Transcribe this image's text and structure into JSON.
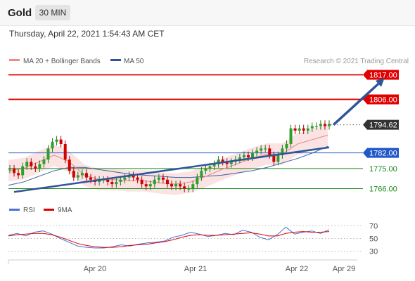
{
  "header": {
    "asset": "Gold",
    "timeframe": "30 MIN",
    "datetime": "Thursday, April 22, 2021 1:54:43 AM CET"
  },
  "legend": [
    {
      "label": "MA 20 + Bollinger Bands",
      "color": "#f08a8a"
    },
    {
      "label": "MA 50",
      "color": "#2e5597"
    }
  ],
  "copyright": "Research © 2021 Trading Central",
  "levels": [
    {
      "value": 1817.0,
      "label": "1817.00",
      "role": "resistance",
      "color": "#e00000"
    },
    {
      "value": 1806.0,
      "label": "1806.00",
      "role": "resistance",
      "color": "#e00000"
    },
    {
      "value": 1794.62,
      "label": "1794.62",
      "role": "last price",
      "color": "#333333"
    },
    {
      "value": 1782.0,
      "label": "1782.00",
      "role": "pivot",
      "color": "#2258c8"
    },
    {
      "value": 1775.0,
      "label": "1775.00",
      "role": "support",
      "color": "#1a8a1a"
    },
    {
      "value": 1766.0,
      "label": "1766.00",
      "role": "support",
      "color": "#1a8a1a"
    }
  ],
  "rsi": {
    "legend": [
      {
        "label": "RSI",
        "color": "#4a72d0"
      },
      {
        "label": "9MA",
        "color": "#dd0000"
      }
    ],
    "ticks": [
      "70",
      "50",
      "30"
    ]
  },
  "chart_data": {
    "type": "candlestick",
    "x_tick_labels": [
      "Apr 20",
      "Apr 21",
      "Apr 22",
      "Apr 29"
    ],
    "y_range": [
      1760,
      1822
    ],
    "candles_approx": [
      1775,
      1773,
      1772,
      1776,
      1778,
      1776,
      1775,
      1777,
      1779,
      1784,
      1787,
      1788,
      1786,
      1779,
      1774,
      1771,
      1772,
      1773,
      1771,
      1770,
      1769,
      1770,
      1770,
      1769,
      1768,
      1769,
      1770,
      1771,
      1772,
      1771,
      1770,
      1768,
      1767,
      1768,
      1770,
      1771,
      1770,
      1768,
      1767,
      1768,
      1767,
      1766,
      1766,
      1768,
      1771,
      1774,
      1775,
      1776,
      1777,
      1779,
      1778,
      1777,
      1778,
      1779,
      1780,
      1781,
      1780,
      1782,
      1783,
      1784,
      1784,
      1781,
      1778,
      1781,
      1784,
      1786,
      1793,
      1792,
      1793,
      1792,
      1793,
      1794,
      1794,
      1795,
      1794,
      1795
    ],
    "ma50_approx": [
      1767.5,
      1769,
      1771.5,
      1774,
      1775.5,
      1775.5,
      1774.5,
      1773.5,
      1772.5,
      1772,
      1771.5,
      1771,
      1771,
      1771.5,
      1772,
      1773,
      1774,
      1775.5,
      1777.5,
      1779.5,
      1782,
      1785
    ],
    "ma20_approx": [
      1774,
      1775,
      1778,
      1781,
      1778,
      1772,
      1770,
      1770,
      1769.5,
      1769.5,
      1768.5,
      1768,
      1769,
      1771.5,
      1774.5,
      1777,
      1779.5,
      1781.5,
      1781.5,
      1786,
      1788,
      1790
    ],
    "trendline": {
      "from": [
        1,
        1764.5
      ],
      "to": [
        75,
        1784.5
      ]
    },
    "projected_arrow": {
      "from": [
        76,
        1794.6
      ],
      "to": [
        88,
        1815.5
      ]
    },
    "rsi_approx": [
      55,
      58,
      54,
      60,
      62,
      57,
      50,
      44,
      38,
      36,
      35,
      35,
      37,
      40,
      38,
      41,
      43,
      44,
      46,
      52,
      55,
      60,
      57,
      53,
      55,
      58,
      56,
      63,
      60,
      52,
      48,
      56,
      68,
      57,
      60,
      62,
      58,
      64
    ],
    "rsi_ma_approx": [
      54,
      56,
      57,
      58,
      58,
      56,
      52,
      47,
      42,
      39,
      37,
      36,
      36,
      37,
      39,
      40,
      41,
      43,
      45,
      48,
      52,
      55,
      56,
      55,
      55,
      56,
      57,
      58,
      59,
      57,
      54,
      54,
      58,
      60,
      61,
      60,
      60,
      61
    ],
    "rsi_ylim": [
      20,
      80
    ]
  }
}
